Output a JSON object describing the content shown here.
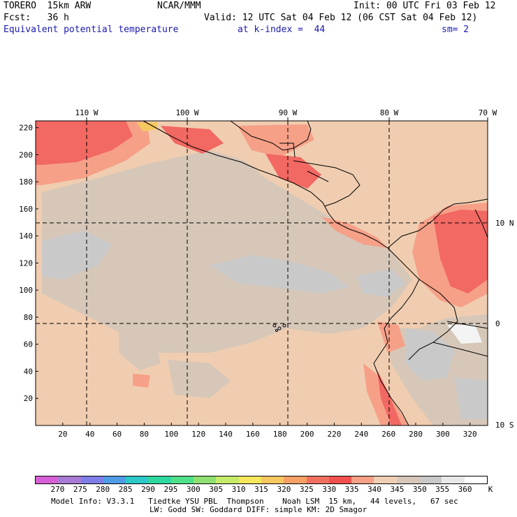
{
  "header": {
    "model": "TORERO  15km ARW",
    "center": "NCAR/MMM",
    "init": "Init: 00 UTC Fri 03 Feb 12",
    "fcst": "Fcst:   36 h",
    "valid": "Valid: 12 UTC Sat 04 Feb 12 (06 CST Sat 04 Feb 12)",
    "field": "Equivalent potential temperature",
    "level": "at k-index =  44",
    "smooth": "sm= 2"
  },
  "map": {
    "top_lon_labels": [
      "110 W",
      "100 W",
      "90 W",
      "80 W",
      "70 W"
    ],
    "right_lat_labels": [
      "10 N",
      "0",
      "10 S"
    ],
    "left_y_ticks": [
      "220",
      "200",
      "180",
      "160",
      "140",
      "120",
      "100",
      "80",
      "60",
      "40",
      "20"
    ],
    "bottom_x_ticks": [
      "20",
      "40",
      "60",
      "80",
      "100",
      "120",
      "140",
      "160",
      "180",
      "200",
      "220",
      "240",
      "260",
      "280",
      "300",
      "320"
    ]
  },
  "colorbar": {
    "unit": "K",
    "labels": [
      "270",
      "275",
      "280",
      "285",
      "290",
      "295",
      "300",
      "305",
      "310",
      "315",
      "320",
      "325",
      "330",
      "335",
      "340",
      "345",
      "350",
      "355",
      "360"
    ],
    "colors": [
      "#d75fd6",
      "#a77ad6",
      "#7f7ee6",
      "#4f9be6",
      "#2fc8c8",
      "#2fd8a0",
      "#4fe08a",
      "#8fe070",
      "#c6ea6a",
      "#f6e85a",
      "#f6c860",
      "#f6a064",
      "#f27060",
      "#f25050",
      "#f6a088",
      "#f0ceb4",
      "#d8c6b8",
      "#c8c8c8",
      "#e8e8e8",
      "#ffffff"
    ]
  },
  "footer": {
    "line1": "Model Info: V3.3.1   Tiedtke YSU PBL  Thompson    Noah LSM  15 km,   44 levels,   67 sec",
    "line2": "LW: Godd SW: Goddard DIFF: simple KM: 2D Smagor"
  }
}
